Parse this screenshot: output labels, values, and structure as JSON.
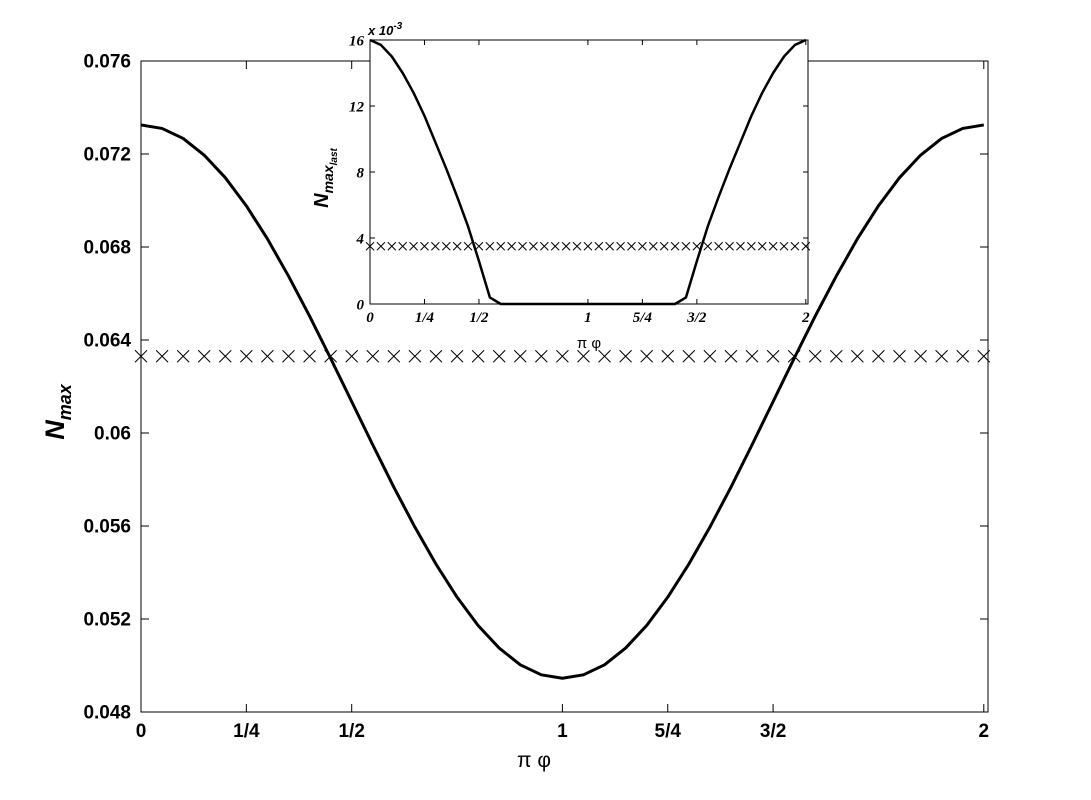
{
  "chart_data": [
    {
      "type": "line",
      "x_label": "π φ",
      "y_label": "N",
      "y_label_sub": "max",
      "x": [
        0,
        0.05,
        0.1,
        0.15,
        0.2,
        0.25,
        0.3,
        0.35,
        0.4,
        0.45,
        0.5,
        0.55,
        0.6,
        0.65,
        0.7,
        0.75,
        0.8,
        0.85,
        0.9,
        0.95,
        1,
        1.05,
        1.1,
        1.15,
        1.2,
        1.25,
        1.3,
        1.35,
        1.4,
        1.45,
        1.5,
        1.55,
        1.6,
        1.65,
        1.7,
        1.75,
        1.8,
        1.85,
        1.9,
        1.95,
        2
      ],
      "series": [
        {
          "color": "#000000",
          "linestyle": "solid",
          "marker": "none",
          "values": [
            0.07325,
            0.0731,
            0.07267,
            0.07195,
            0.07098,
            0.06977,
            0.06835,
            0.06675,
            0.06503,
            0.06321,
            0.06135,
            0.05949,
            0.05767,
            0.05595,
            0.05436,
            0.05294,
            0.05172,
            0.05075,
            0.05003,
            0.0496,
            0.04945,
            0.0496,
            0.05003,
            0.05075,
            0.05172,
            0.05294,
            0.05436,
            0.05595,
            0.05767,
            0.05949,
            0.06135,
            0.06321,
            0.06503,
            0.06675,
            0.06835,
            0.06977,
            0.07098,
            0.07195,
            0.07267,
            0.0731,
            0.07325
          ]
        },
        {
          "color": "#000000",
          "linestyle": "none",
          "marker": "x",
          "values": [
            0.0633,
            0.0633,
            0.0633,
            0.0633,
            0.0633,
            0.0633,
            0.0633,
            0.0633,
            0.0633,
            0.0633,
            0.0633,
            0.0633,
            0.0633,
            0.0633,
            0.0633,
            0.0633,
            0.0633,
            0.0633,
            0.0633,
            0.0633,
            0.0633,
            0.0633,
            0.0633,
            0.0633,
            0.0633,
            0.0633,
            0.0633,
            0.0633,
            0.0633,
            0.0633,
            0.0633,
            0.0633,
            0.0633,
            0.0633,
            0.0633,
            0.0633,
            0.0633,
            0.0633,
            0.0633,
            0.0633,
            0.0633
          ]
        }
      ],
      "xlim": [
        0,
        2.01
      ],
      "ylim": [
        0.048,
        0.076
      ],
      "xticks": [
        0,
        {
          "value": 0.25,
          "label": "1/4"
        },
        {
          "value": 0.5,
          "label": "1/2"
        },
        1,
        {
          "value": 1.25,
          "label": "5/4"
        },
        {
          "value": 1.5,
          "label": "3/2"
        },
        2
      ],
      "yticks": [
        0.048,
        0.052,
        0.056,
        0.06,
        0.064,
        0.068,
        0.072,
        0.076
      ],
      "grid": false
    },
    {
      "type": "line",
      "x_label": "π φ",
      "y_label": "N",
      "y_label_sub": "max",
      "y_label_subsub": "last",
      "y_multiplier": "x 10",
      "y_multiplier_exponent": "-3",
      "x": [
        0,
        0.05,
        0.1,
        0.15,
        0.2,
        0.25,
        0.3,
        0.35,
        0.4,
        0.45,
        0.5,
        0.55,
        0.6,
        0.65,
        0.7,
        0.75,
        0.8,
        0.85,
        0.9,
        0.95,
        1,
        1.05,
        1.1,
        1.15,
        1.2,
        1.25,
        1.3,
        1.35,
        1.4,
        1.45,
        1.5,
        1.55,
        1.6,
        1.65,
        1.7,
        1.75,
        1.8,
        1.85,
        1.9,
        1.95,
        2
      ],
      "series": [
        {
          "color": "#000000",
          "linestyle": "solid",
          "marker": "none",
          "values": [
            16,
            15.7,
            15,
            14,
            12.8,
            11.4,
            9.8,
            8.2,
            6.5,
            4.7,
            2.6,
            0.4,
            0,
            0,
            0,
            0,
            0,
            0,
            0,
            0,
            0,
            0,
            0,
            0,
            0,
            0,
            0,
            0,
            0,
            0.4,
            2.6,
            4.7,
            6.5,
            8.2,
            9.8,
            11.4,
            12.8,
            14,
            15,
            15.7,
            16
          ]
        },
        {
          "color": "#000000",
          "linestyle": "none",
          "marker": "x",
          "values": [
            3.5,
            3.5,
            3.5,
            3.5,
            3.5,
            3.5,
            3.5,
            3.5,
            3.5,
            3.5,
            3.5,
            3.5,
            3.5,
            3.5,
            3.5,
            3.5,
            3.5,
            3.5,
            3.5,
            3.5,
            3.5,
            3.5,
            3.5,
            3.5,
            3.5,
            3.5,
            3.5,
            3.5,
            3.5,
            3.5,
            3.5,
            3.5,
            3.5,
            3.5,
            3.5,
            3.5,
            3.5,
            3.5,
            3.5,
            3.5,
            3.5
          ]
        }
      ],
      "xlim": [
        0,
        2.01
      ],
      "ylim": [
        0,
        16
      ],
      "xticks": [
        0,
        {
          "value": 0.25,
          "label": "1/4"
        },
        {
          "value": 0.5,
          "label": "1/2"
        },
        1,
        {
          "value": 1.25,
          "label": "5/4"
        },
        {
          "value": 1.5,
          "label": "3/2"
        },
        2
      ],
      "yticks": [
        0,
        4,
        8,
        12,
        16
      ],
      "grid": false
    }
  ]
}
